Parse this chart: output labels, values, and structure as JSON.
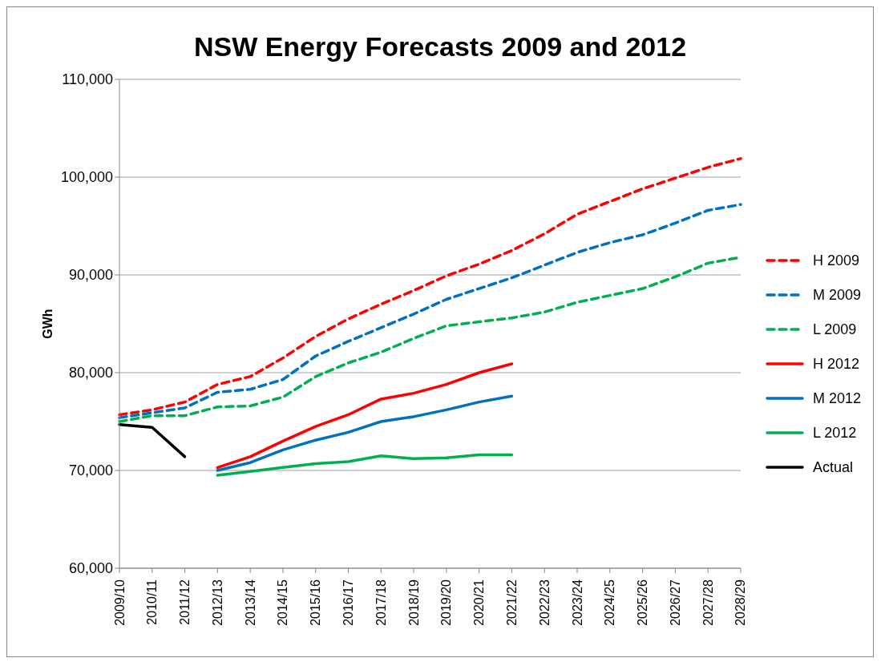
{
  "chart_data": {
    "type": "line",
    "title": "NSW Energy Forecasts 2009 and 2012",
    "ylabel": "GWh",
    "categories": [
      "2009/10",
      "2010/11",
      "2011/12",
      "2012/13",
      "2013/14",
      "2014/15",
      "2015/16",
      "2016/17",
      "2017/18",
      "2018/19",
      "2019/20",
      "2020/21",
      "2021/22",
      "2022/23",
      "2023/24",
      "2024/25",
      "2025/26",
      "2026/27",
      "2027/28",
      "2028/29"
    ],
    "series": [
      {
        "name": "H 2009",
        "color": "#ff0000",
        "line_style": "dashed",
        "values": [
          75700,
          76200,
          77000,
          78800,
          79600,
          81500,
          83700,
          85500,
          87000,
          88400,
          89900,
          91100,
          92500,
          94200,
          96200,
          97500,
          98800,
          99900,
          101000,
          101900
        ]
      },
      {
        "name": "M 2009",
        "color": "#0070c0",
        "line_style": "dashed",
        "values": [
          75400,
          75900,
          76400,
          78000,
          78300,
          79300,
          81700,
          83200,
          84600,
          86000,
          87500,
          88600,
          89700,
          91000,
          92300,
          93300,
          94100,
          95300,
          96600,
          97200
        ]
      },
      {
        "name": "L 2009",
        "color": "#00b050",
        "line_style": "dashed",
        "values": [
          75000,
          75600,
          75600,
          76500,
          76600,
          77500,
          79600,
          81000,
          82100,
          83500,
          84800,
          85200,
          85600,
          86200,
          87200,
          87900,
          88600,
          89800,
          91200,
          91800
        ]
      },
      {
        "name": "H 2012",
        "color": "#ff0000",
        "line_style": "solid",
        "values": [
          null,
          null,
          null,
          70300,
          71400,
          73000,
          74500,
          75700,
          77300,
          77900,
          78800,
          80000,
          80900,
          null,
          null,
          null,
          null,
          null,
          null,
          null
        ]
      },
      {
        "name": "M 2012",
        "color": "#0070c0",
        "line_style": "solid",
        "values": [
          null,
          null,
          null,
          70000,
          70800,
          72100,
          73100,
          73900,
          75000,
          75500,
          76200,
          77000,
          77600,
          null,
          null,
          null,
          null,
          null,
          null,
          null
        ]
      },
      {
        "name": "L 2012",
        "color": "#00b050",
        "line_style": "solid",
        "values": [
          null,
          null,
          null,
          69500,
          69900,
          70300,
          70700,
          70900,
          71500,
          71200,
          71300,
          71600,
          71600,
          null,
          null,
          null,
          null,
          null,
          null,
          null
        ]
      },
      {
        "name": "Actual",
        "color": "#000000",
        "line_style": "solid",
        "values": [
          74700,
          74400,
          71400,
          null,
          null,
          null,
          null,
          null,
          null,
          null,
          null,
          null,
          null,
          null,
          null,
          null,
          null,
          null,
          null,
          null
        ]
      }
    ],
    "ylim": [
      60000,
      110000
    ],
    "yticks": [
      {
        "value": 60000,
        "label": "60,000"
      },
      {
        "value": 70000,
        "label": "70,000"
      },
      {
        "value": 80000,
        "label": "80,000"
      },
      {
        "value": 90000,
        "label": "90,000"
      },
      {
        "value": 100000,
        "label": "100,000"
      },
      {
        "value": 110000,
        "label": "110,000"
      }
    ],
    "grid": "y",
    "legend": "right",
    "marker": "none"
  }
}
